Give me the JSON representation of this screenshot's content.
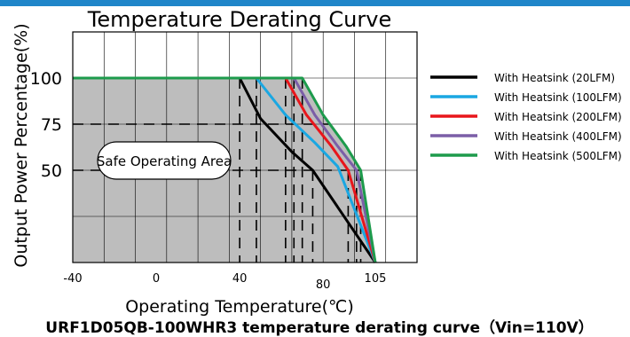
{
  "theme": {
    "accent_bar": "#1f86c9",
    "safe_area_fill": "#bdbdbd",
    "grid": "#000000"
  },
  "chart_data": {
    "type": "line",
    "title": "Temperature Derating Curve",
    "xlabel": "Operating Temperature(℃)",
    "ylabel": "Output Power Percentage(%)",
    "caption": "URF1D05QB-100WHR3 temperature derating curve（Vin=110V）",
    "annotation": "Safe Operating Area",
    "xlim": [
      -40,
      125
    ],
    "ylim": [
      0,
      125
    ],
    "x_ticks": [
      {
        "value": -40,
        "label": "-40"
      },
      {
        "value": 0,
        "label": "0"
      },
      {
        "value": 40,
        "label": "40"
      },
      {
        "value": 80,
        "label": "80"
      },
      {
        "value": 105,
        "label": "105"
      }
    ],
    "y_ticks": [
      {
        "value": 100,
        "label": "100"
      },
      {
        "value": 75,
        "label": "75"
      },
      {
        "value": 50,
        "label": "50"
      }
    ],
    "grid": true,
    "legend_position": "right",
    "series": [
      {
        "name": "With Heatsink (20LFM)",
        "color": "#000000",
        "x": [
          -40,
          40,
          50,
          65,
          75,
          105
        ],
        "y": [
          100,
          100,
          78,
          60,
          50,
          0
        ]
      },
      {
        "name": "With Heatsink (100LFM)",
        "color": "#1aa7e2",
        "x": [
          -40,
          48,
          62,
          76,
          87,
          105
        ],
        "y": [
          100,
          100,
          80,
          65,
          52,
          0
        ]
      },
      {
        "name": "With Heatsink (200LFM)",
        "color": "#e8161b",
        "x": [
          -40,
          62,
          72,
          84,
          92,
          105
        ],
        "y": [
          100,
          100,
          80,
          63,
          50,
          0
        ]
      },
      {
        "name": "With Heatsink (400LFM)",
        "color": "#7b5ea7",
        "x": [
          -40,
          66,
          76,
          87,
          96,
          105
        ],
        "y": [
          100,
          100,
          80,
          63,
          50,
          0
        ]
      },
      {
        "name": "With Heatsink (500LFM)",
        "color": "#1d9b4c",
        "x": [
          -40,
          70,
          80,
          91,
          98,
          105
        ],
        "y": [
          100,
          100,
          80,
          63,
          50,
          0
        ]
      }
    ]
  }
}
